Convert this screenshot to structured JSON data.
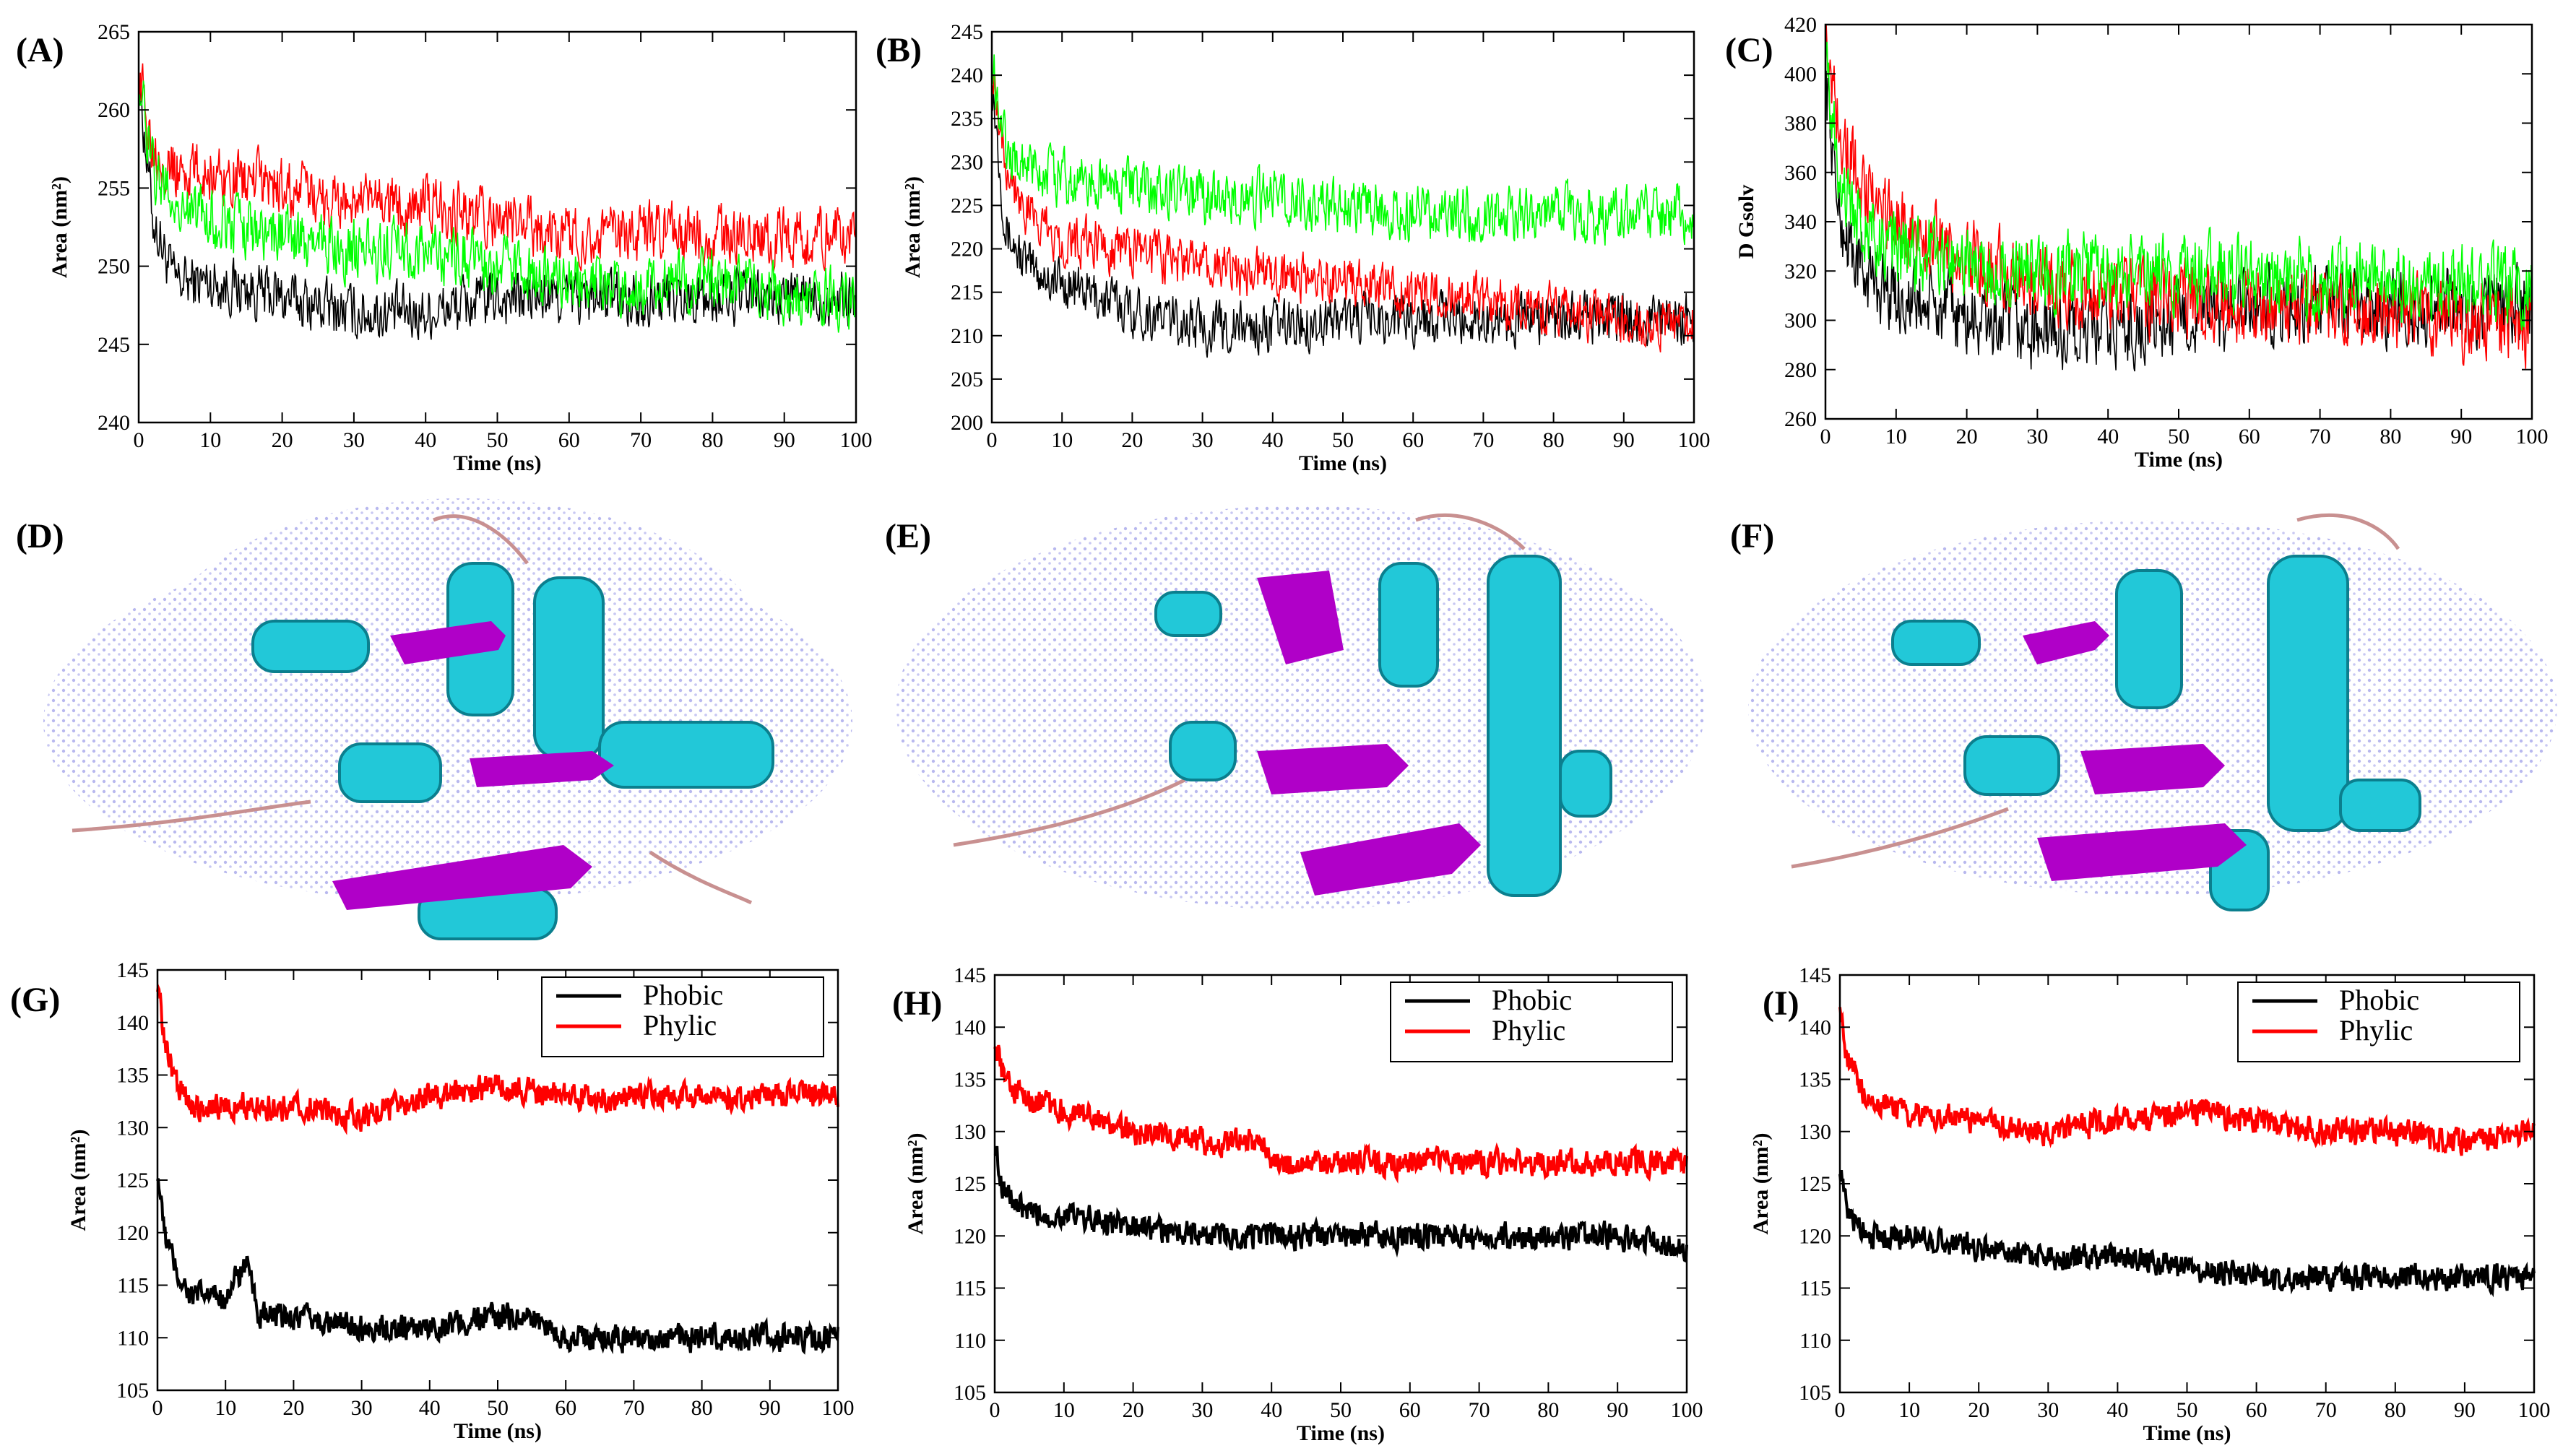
{
  "panels": [
    {
      "letter": "(A)",
      "xlabel": "Time (ns)",
      "ylabel": "Area (nm²)"
    },
    {
      "letter": "(B)",
      "xlabel": "Time (ns)",
      "ylabel": "Area (nm²)"
    },
    {
      "letter": "(C)",
      "xlabel": "Time (ns)",
      "ylabel": "D Gsolv"
    },
    {
      "letter": "(D)"
    },
    {
      "letter": "(E)"
    },
    {
      "letter": "(F)"
    },
    {
      "letter": "(G)",
      "xlabel": "Time (ns)",
      "ylabel": "Area (nm²)"
    },
    {
      "letter": "(H)",
      "xlabel": "Time (ns)",
      "ylabel": "Area (nm²)"
    },
    {
      "letter": "(I)",
      "xlabel": "Time (ns)",
      "ylabel": "Area (nm²)"
    }
  ],
  "colors": {
    "black": "#000000",
    "red": "#ff0000",
    "green": "#00ff00",
    "helix": "#22c8d8",
    "sheet": "#b000c8",
    "coil": "#c89090",
    "surface": "#c8c8f0"
  },
  "chart_data": [
    {
      "panel": "A",
      "type": "line",
      "xlabel": "Time (ns)",
      "ylabel": "Area (nm²)",
      "xlim": [
        0,
        100
      ],
      "ylim": [
        240,
        265
      ],
      "xticks": [
        0,
        10,
        20,
        30,
        40,
        50,
        60,
        70,
        80,
        90,
        100
      ],
      "yticks": [
        240,
        245,
        250,
        255,
        260,
        265
      ],
      "series": [
        {
          "name": "black",
          "color": "#000000",
          "x": [
            0,
            2,
            5,
            10,
            20,
            30,
            40,
            50,
            60,
            70,
            80,
            90,
            100
          ],
          "y": [
            262,
            253,
            249,
            249,
            248,
            247,
            247,
            248,
            248,
            248,
            248,
            248,
            248
          ],
          "noise": 1.6
        },
        {
          "name": "red",
          "color": "#ff0000",
          "x": [
            0,
            2,
            5,
            10,
            20,
            30,
            40,
            50,
            60,
            70,
            80,
            90,
            100
          ],
          "y": [
            262,
            258,
            256,
            256,
            255,
            254,
            254,
            253,
            252,
            252,
            252,
            252,
            252
          ],
          "noise": 1.7
        },
        {
          "name": "green",
          "color": "#00ff00",
          "x": [
            0,
            2,
            5,
            10,
            20,
            30,
            40,
            50,
            60,
            70,
            80,
            90,
            100
          ],
          "y": [
            262,
            256,
            254,
            253,
            252,
            251,
            251,
            250,
            249,
            249,
            249,
            248,
            248
          ],
          "noise": 1.7
        }
      ]
    },
    {
      "panel": "B",
      "type": "line",
      "xlabel": "Time (ns)",
      "ylabel": "Area (nm²)",
      "xlim": [
        0,
        100
      ],
      "ylim": [
        200,
        245
      ],
      "xticks": [
        0,
        10,
        20,
        30,
        40,
        50,
        60,
        70,
        80,
        90,
        100
      ],
      "yticks": [
        200,
        205,
        210,
        215,
        220,
        225,
        230,
        235,
        240,
        245
      ],
      "series": [
        {
          "name": "black",
          "color": "#000000",
          "x": [
            0,
            2,
            5,
            10,
            20,
            30,
            40,
            50,
            60,
            70,
            80,
            90,
            100
          ],
          "y": [
            240,
            222,
            218,
            216,
            213,
            211,
            211,
            212,
            212,
            212,
            212,
            212,
            212
          ],
          "noise": 2.6
        },
        {
          "name": "red",
          "color": "#ff0000",
          "x": [
            0,
            2,
            5,
            10,
            20,
            30,
            40,
            50,
            60,
            70,
            80,
            90,
            100
          ],
          "y": [
            242,
            230,
            224,
            221,
            220,
            218,
            217,
            216,
            215,
            214,
            213,
            212,
            211
          ],
          "noise": 2.6
        },
        {
          "name": "green",
          "color": "#00ff00",
          "x": [
            0,
            2,
            5,
            10,
            20,
            30,
            40,
            50,
            60,
            70,
            80,
            90,
            100
          ],
          "y": [
            242,
            232,
            229,
            228,
            227,
            226,
            226,
            225,
            224,
            224,
            224,
            224,
            224
          ],
          "noise": 2.8
        }
      ]
    },
    {
      "panel": "C",
      "type": "line",
      "xlabel": "Time (ns)",
      "ylabel": "D Gsolv",
      "xlim": [
        0,
        100
      ],
      "ylim": [
        260,
        420
      ],
      "xticks": [
        0,
        10,
        20,
        30,
        40,
        50,
        60,
        70,
        80,
        90,
        100
      ],
      "yticks": [
        260,
        280,
        300,
        320,
        340,
        360,
        380,
        400,
        420
      ],
      "series": [
        {
          "name": "black",
          "color": "#000000",
          "x": [
            0,
            2,
            5,
            10,
            20,
            30,
            40,
            50,
            60,
            70,
            80,
            90,
            100
          ],
          "y": [
            400,
            340,
            320,
            310,
            300,
            295,
            295,
            300,
            305,
            305,
            305,
            305,
            305
          ],
          "noise": 14
        },
        {
          "name": "red",
          "color": "#ff0000",
          "x": [
            0,
            2,
            5,
            10,
            20,
            30,
            40,
            50,
            60,
            70,
            80,
            90,
            100
          ],
          "y": [
            415,
            380,
            355,
            340,
            325,
            315,
            310,
            308,
            306,
            305,
            304,
            300,
            298
          ],
          "noise": 14
        },
        {
          "name": "green",
          "color": "#00ff00",
          "x": [
            0,
            2,
            5,
            10,
            20,
            30,
            40,
            50,
            60,
            70,
            80,
            90,
            100
          ],
          "y": [
            405,
            360,
            340,
            330,
            322,
            320,
            320,
            320,
            318,
            316,
            315,
            314,
            312
          ],
          "noise": 14
        }
      ]
    },
    {
      "panel": "G",
      "type": "line",
      "xlabel": "Time (ns)",
      "ylabel": "Area (nm²)",
      "xlim": [
        0,
        100
      ],
      "ylim": [
        105,
        145
      ],
      "xticks": [
        0,
        10,
        20,
        30,
        40,
        50,
        60,
        70,
        80,
        90,
        100
      ],
      "yticks": [
        105,
        110,
        115,
        120,
        125,
        130,
        135,
        140,
        145
      ],
      "legend": [
        "Phobic",
        "Phylic"
      ],
      "series": [
        {
          "name": "Phobic",
          "color": "#000000",
          "x": [
            0,
            1,
            3,
            5,
            10,
            13,
            15,
            20,
            30,
            40,
            50,
            55,
            60,
            70,
            80,
            90,
            100
          ],
          "y": [
            126,
            120,
            116,
            114,
            114,
            117,
            112,
            112,
            111,
            111,
            112,
            112,
            110,
            110,
            110,
            110,
            110
          ],
          "noise": 1.1
        },
        {
          "name": "Phylic",
          "color": "#ff0000",
          "x": [
            0,
            1,
            3,
            5,
            10,
            20,
            30,
            40,
            50,
            60,
            70,
            80,
            90,
            100
          ],
          "y": [
            144,
            138,
            134,
            132,
            132,
            132,
            131,
            133,
            134,
            133,
            133,
            133,
            133,
            133
          ],
          "noise": 1.1
        }
      ]
    },
    {
      "panel": "H",
      "type": "line",
      "xlabel": "Time (ns)",
      "ylabel": "Area (nm²)",
      "xlim": [
        0,
        100
      ],
      "ylim": [
        105,
        145
      ],
      "xticks": [
        0,
        10,
        20,
        30,
        40,
        50,
        60,
        70,
        80,
        90,
        100
      ],
      "yticks": [
        105,
        110,
        115,
        120,
        125,
        130,
        135,
        140,
        145
      ],
      "legend": [
        "Phobic",
        "Phylic"
      ],
      "series": [
        {
          "name": "Phobic",
          "color": "#000000",
          "x": [
            0,
            1,
            3,
            5,
            10,
            20,
            30,
            40,
            50,
            60,
            70,
            80,
            90,
            100
          ],
          "y": [
            129,
            125,
            123,
            122,
            122,
            121,
            120,
            120,
            120,
            120,
            120,
            120,
            120,
            119
          ],
          "noise": 1.1
        },
        {
          "name": "Phylic",
          "color": "#ff0000",
          "x": [
            0,
            1,
            3,
            5,
            10,
            20,
            30,
            39,
            40,
            50,
            60,
            70,
            80,
            90,
            100
          ],
          "y": [
            139,
            136,
            134,
            133,
            132,
            130,
            129,
            129,
            127,
            127,
            127,
            127,
            127,
            127,
            127
          ],
          "noise": 1.1
        }
      ]
    },
    {
      "panel": "I",
      "type": "line",
      "xlabel": "Time (ns)",
      "ylabel": "Area (nm²)",
      "xlim": [
        0,
        100
      ],
      "ylim": [
        105,
        145
      ],
      "xticks": [
        0,
        10,
        20,
        30,
        40,
        50,
        60,
        70,
        80,
        90,
        100
      ],
      "yticks": [
        105,
        110,
        115,
        120,
        125,
        130,
        135,
        140,
        145
      ],
      "legend": [
        "Phobic",
        "Phylic"
      ],
      "series": [
        {
          "name": "Phobic",
          "color": "#000000",
          "x": [
            0,
            1,
            3,
            5,
            10,
            20,
            30,
            40,
            50,
            60,
            70,
            80,
            90,
            100
          ],
          "y": [
            127,
            122,
            121,
            120,
            120,
            119,
            118,
            118,
            117,
            116,
            116,
            116,
            116,
            116
          ],
          "noise": 1.1
        },
        {
          "name": "Phylic",
          "color": "#ff0000",
          "x": [
            0,
            1,
            3,
            5,
            10,
            20,
            30,
            40,
            50,
            60,
            70,
            80,
            90,
            100
          ],
          "y": [
            143,
            137,
            134,
            133,
            132,
            131,
            130,
            131,
            132,
            131,
            130,
            130,
            129,
            130
          ],
          "noise": 1.1
        }
      ]
    }
  ]
}
